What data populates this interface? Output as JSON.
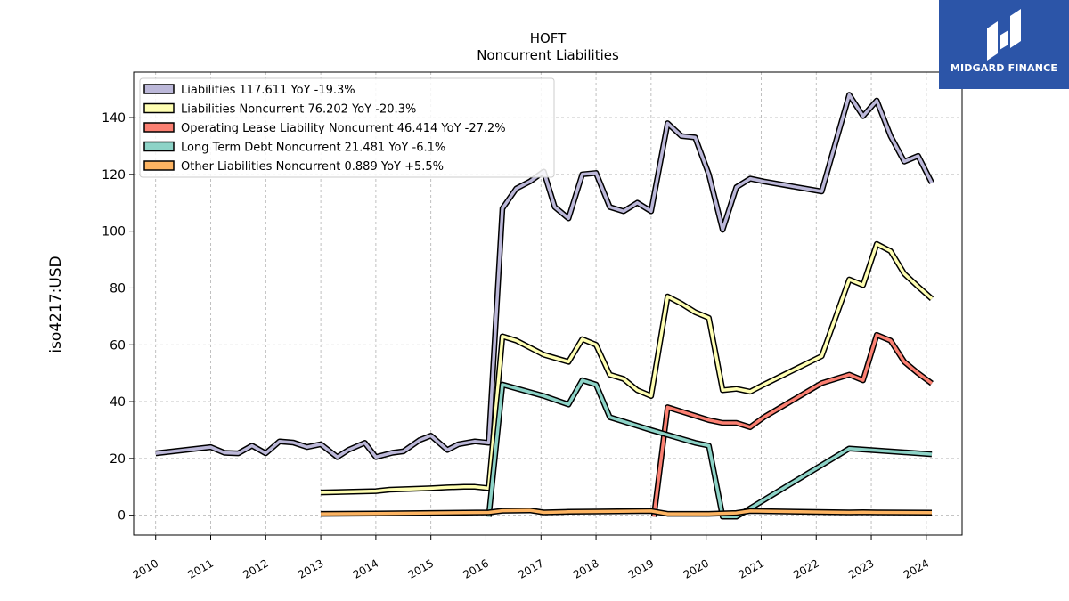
{
  "brand": {
    "name": "MIDGARD FINANCE",
    "bg_color": "#2c55a8"
  },
  "chart_data": {
    "type": "line",
    "title": "HOFT",
    "subtitle": "Noncurrent  Liabilities",
    "ylabel": "iso4217:USD",
    "xlabel": "",
    "xlim": [
      2009.6,
      2024.65
    ],
    "ylim": [
      -7,
      156
    ],
    "grid": true,
    "legend_placement": "top-left",
    "y_ticks": [
      0,
      20,
      40,
      60,
      80,
      100,
      120,
      140
    ],
    "x_ticks": [
      2010,
      2011,
      2012,
      2013,
      2014,
      2015,
      2016,
      2017,
      2018,
      2019,
      2020,
      2021,
      2022,
      2023,
      2024
    ],
    "series": [
      {
        "name": "Liabilities",
        "legend_label": "Liabilities  117.611 YoY -19.3%",
        "color": "#bcb8d9",
        "points": [
          [
            2010.0,
            21.8
          ],
          [
            2011.0,
            24.0
          ],
          [
            2011.25,
            22.0
          ],
          [
            2011.5,
            21.8
          ],
          [
            2011.75,
            24.5
          ],
          [
            2012.0,
            21.8
          ],
          [
            2012.25,
            26.0
          ],
          [
            2012.5,
            25.6
          ],
          [
            2012.75,
            24.0
          ],
          [
            2013.0,
            25.0
          ],
          [
            2013.3,
            20.5
          ],
          [
            2013.5,
            23.0
          ],
          [
            2013.8,
            25.5
          ],
          [
            2014.0,
            20.5
          ],
          [
            2014.3,
            22.0
          ],
          [
            2014.5,
            22.5
          ],
          [
            2014.8,
            26.5
          ],
          [
            2015.0,
            28.0
          ],
          [
            2015.3,
            23.0
          ],
          [
            2015.5,
            25.0
          ],
          [
            2015.8,
            26.0
          ],
          [
            2016.05,
            25.5
          ],
          [
            2016.3,
            108.0
          ],
          [
            2016.55,
            115.0
          ],
          [
            2016.8,
            117.5
          ],
          [
            2017.05,
            121.0
          ],
          [
            2017.25,
            108.5
          ],
          [
            2017.5,
            104.5
          ],
          [
            2017.75,
            120.0
          ],
          [
            2018.0,
            120.5
          ],
          [
            2018.25,
            108.5
          ],
          [
            2018.5,
            107.0
          ],
          [
            2018.75,
            110.0
          ],
          [
            2019.0,
            107.0
          ],
          [
            2019.3,
            138.0
          ],
          [
            2019.55,
            133.5
          ],
          [
            2019.8,
            133.0
          ],
          [
            2020.05,
            120.0
          ],
          [
            2020.3,
            100.5
          ],
          [
            2020.55,
            115.5
          ],
          [
            2020.8,
            118.5
          ],
          [
            2021.05,
            117.5
          ],
          [
            2022.1,
            114.0
          ],
          [
            2022.6,
            148.0
          ],
          [
            2022.85,
            140.5
          ],
          [
            2023.1,
            146.0
          ],
          [
            2023.35,
            133.5
          ],
          [
            2023.6,
            124.5
          ],
          [
            2023.85,
            126.5
          ],
          [
            2024.1,
            117.0
          ]
        ]
      },
      {
        "name": "Liabilities Noncurrent",
        "legend_label": "Liabilities Noncurrent  76.202 YoY -20.3%",
        "color": "#ffffb3",
        "points": [
          [
            2013.0,
            8.0
          ],
          [
            2014.0,
            8.5
          ],
          [
            2014.25,
            9.0
          ],
          [
            2015.0,
            9.5
          ],
          [
            2015.3,
            9.8
          ],
          [
            2015.6,
            10.0
          ],
          [
            2015.8,
            10.0
          ],
          [
            2016.05,
            9.5
          ],
          [
            2016.3,
            63.0
          ],
          [
            2016.55,
            61.5
          ],
          [
            2016.8,
            59.0
          ],
          [
            2017.05,
            56.5
          ],
          [
            2017.5,
            54.0
          ],
          [
            2017.75,
            62.0
          ],
          [
            2018.0,
            60.0
          ],
          [
            2018.25,
            49.5
          ],
          [
            2018.5,
            48.0
          ],
          [
            2018.75,
            44.0
          ],
          [
            2019.0,
            42.0
          ],
          [
            2019.3,
            77.0
          ],
          [
            2019.55,
            74.5
          ],
          [
            2019.8,
            71.5
          ],
          [
            2020.05,
            69.5
          ],
          [
            2020.3,
            44.0
          ],
          [
            2020.55,
            44.5
          ],
          [
            2020.8,
            43.5
          ],
          [
            2021.05,
            46.0
          ],
          [
            2022.1,
            56.0
          ],
          [
            2022.6,
            83.0
          ],
          [
            2022.85,
            81.0
          ],
          [
            2023.1,
            95.5
          ],
          [
            2023.35,
            93.0
          ],
          [
            2023.6,
            85.0
          ],
          [
            2023.85,
            80.5
          ],
          [
            2024.1,
            76.2
          ]
        ]
      },
      {
        "name": "Operating Lease Liability Noncurrent",
        "legend_label": "Operating Lease Liability Noncurrent  46.414 YoY -27.2%",
        "color": "#fb8072",
        "points": [
          [
            2019.05,
            -0.5
          ],
          [
            2019.3,
            38.0
          ],
          [
            2019.55,
            36.5
          ],
          [
            2019.8,
            35.0
          ],
          [
            2020.05,
            33.5
          ],
          [
            2020.3,
            32.5
          ],
          [
            2020.55,
            32.5
          ],
          [
            2020.8,
            31.0
          ],
          [
            2021.05,
            34.5
          ],
          [
            2022.1,
            46.5
          ],
          [
            2022.6,
            49.5
          ],
          [
            2022.85,
            47.5
          ],
          [
            2023.1,
            63.5
          ],
          [
            2023.35,
            61.5
          ],
          [
            2023.6,
            54.0
          ],
          [
            2023.85,
            50.0
          ],
          [
            2024.1,
            46.4
          ]
        ]
      },
      {
        "name": "Long Term Debt Noncurrent",
        "legend_label": "Long Term Debt Noncurrent  21.481 YoY -6.1%",
        "color": "#8dd3c7",
        "points": [
          [
            2016.05,
            -0.5
          ],
          [
            2016.3,
            46.0
          ],
          [
            2017.05,
            42.0
          ],
          [
            2017.5,
            39.0
          ],
          [
            2017.75,
            47.5
          ],
          [
            2018.0,
            46.0
          ],
          [
            2018.25,
            34.5
          ],
          [
            2018.5,
            33.0
          ],
          [
            2018.75,
            31.5
          ],
          [
            2019.0,
            30.0
          ],
          [
            2019.8,
            25.5
          ],
          [
            2020.05,
            24.5
          ],
          [
            2020.3,
            -0.5
          ],
          [
            2020.55,
            -0.5
          ],
          [
            2022.6,
            23.5
          ],
          [
            2024.1,
            21.5
          ]
        ]
      },
      {
        "name": "Other Liabilities Noncurrent",
        "legend_label": "Other Liabilities Noncurrent  0.889 YoY +5.5%",
        "color": "#fdb462",
        "points": [
          [
            2013.0,
            0.5
          ],
          [
            2014.0,
            0.6
          ],
          [
            2015.0,
            0.8
          ],
          [
            2016.05,
            1.0
          ],
          [
            2016.3,
            1.6
          ],
          [
            2016.8,
            1.7
          ],
          [
            2017.05,
            1.0
          ],
          [
            2017.5,
            1.2
          ],
          [
            2018.0,
            1.3
          ],
          [
            2019.0,
            1.5
          ],
          [
            2019.3,
            0.5
          ],
          [
            2020.05,
            0.5
          ],
          [
            2020.55,
            0.8
          ],
          [
            2020.8,
            1.5
          ],
          [
            2022.6,
            1.0
          ],
          [
            2022.85,
            1.1
          ],
          [
            2023.1,
            1.0
          ],
          [
            2024.1,
            0.9
          ]
        ]
      }
    ]
  }
}
